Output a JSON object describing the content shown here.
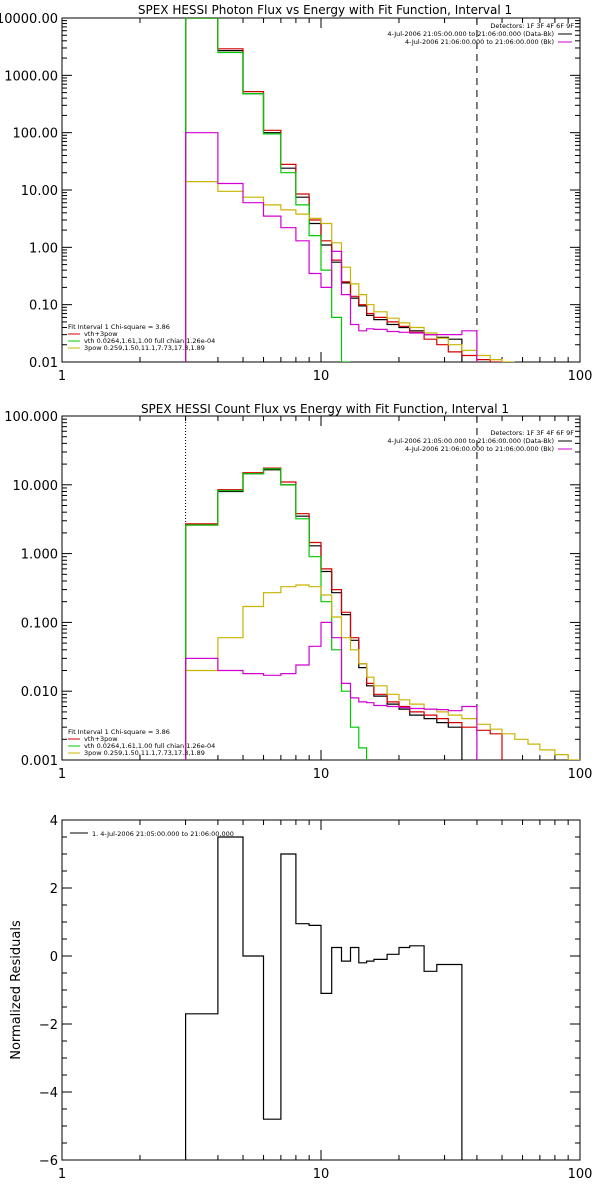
{
  "chart_data": [
    {
      "type": "line",
      "title": "SPEX HESSI Photon Flux vs Energy with Fit Function, Interval 1",
      "x_scale": "log",
      "y_scale": "log",
      "xlim": [
        1,
        100
      ],
      "ylim": [
        0.01,
        10000
      ],
      "x_ticks": [
        "1",
        "10",
        "100"
      ],
      "x_tick_values": [
        1,
        10,
        100
      ],
      "y_ticks": [
        "0.01",
        "0.10",
        "1.00",
        "10.00",
        "100.00",
        "1000.00",
        "10000.00"
      ],
      "y_tick_values": [
        0.01,
        0.1,
        1,
        10,
        100,
        1000,
        10000
      ],
      "energy_edges": [
        3,
        4,
        5,
        6,
        7,
        8,
        9,
        10,
        11,
        12,
        13,
        14,
        15,
        16,
        18,
        20,
        22,
        25,
        28,
        31,
        35,
        40,
        45,
        50,
        56,
        63,
        70,
        80,
        90,
        100
      ],
      "vlines": [
        {
          "x": 3,
          "style": "dotted"
        },
        {
          "x": 40,
          "style": "dashed"
        }
      ],
      "legend_top": [
        {
          "label": "Detectors: 1F 3F 4F 6F 9F",
          "color": ""
        },
        {
          "label": "4-Jul-2006 21:05:00.000 to 21:06:00.000 (Data-Bk)",
          "color": "#000000"
        },
        {
          "label": "4-Jul-2006 21:06:00.000 to 21:06:00.000 (Bk)",
          "color": "#d200d2"
        }
      ],
      "legend_bottom": [
        {
          "label": "Fit Interval 1    Chi-square = 3.86",
          "color": ""
        },
        {
          "label": "vth+3pow",
          "color": "#d20000"
        },
        {
          "label": "vth 0.0264,1.61,1.00   full chian 1.26e-04",
          "color": "#00c800"
        },
        {
          "label": "3pow 0.259,1.50,11.1,7.73,17.3,1.89",
          "color": "#c8b400"
        }
      ],
      "series": [
        {
          "name": "4-Jul-2006 21:05:00.000 to 21:06:00.000 (Data-Bk)",
          "color": "#000000",
          "values": [
            10000,
            2700,
            480,
            100,
            24,
            7.5,
            2.6,
            1.1,
            0.55,
            0.24,
            0.13,
            0.095,
            0.065,
            0.055,
            0.045,
            0.04,
            0.035,
            0.03,
            0.027,
            0.025
          ]
        },
        {
          "name": "vth+3pow",
          "color": "#d20000",
          "values": [
            10000,
            2900,
            520,
            110,
            28,
            8.5,
            3.0,
            1.3,
            0.6,
            0.25,
            0.14,
            0.1,
            0.07,
            0.06,
            0.05,
            0.042,
            0.033,
            0.025,
            0.02,
            0.015,
            0.013,
            0.011,
            0.009
          ]
        },
        {
          "name": "vth",
          "color": "#00c800",
          "values": [
            10000,
            2500,
            480,
            95,
            20,
            5.5,
            1.6,
            0.4,
            0.06,
            0.006
          ]
        },
        {
          "name": "3pow",
          "color": "#c8b400",
          "values": [
            14,
            9.5,
            7.5,
            5.5,
            4.5,
            3.8,
            3.2,
            2.6,
            1.2,
            0.45,
            0.23,
            0.15,
            0.1,
            0.075,
            0.058,
            0.048,
            0.04,
            0.032,
            0.026,
            0.02,
            0.016,
            0.013,
            0.011,
            0.009
          ]
        },
        {
          "name": "4-Jul-2006 21:06:00.000 to 21:06:00.000 (Bk)",
          "color": "#d200d2",
          "values": [
            100,
            13,
            6,
            3.5,
            2.2,
            1.3,
            0.35,
            0.2,
            0.85,
            0.15,
            0.045,
            0.035,
            0.038,
            0.037,
            0.034,
            0.033,
            0.032,
            0.03,
            0.03,
            0.03,
            0.035
          ]
        }
      ]
    },
    {
      "type": "line",
      "title": "SPEX HESSI Count Flux vs Energy with Fit Function, Interval 1",
      "x_scale": "log",
      "y_scale": "log",
      "xlim": [
        1,
        100
      ],
      "ylim": [
        0.001,
        100
      ],
      "x_ticks": [
        "1",
        "10",
        "100"
      ],
      "x_tick_values": [
        1,
        10,
        100
      ],
      "y_ticks": [
        "0.001",
        "0.010",
        "0.100",
        "1.000",
        "10.000",
        "100.000"
      ],
      "y_tick_values": [
        0.001,
        0.01,
        0.1,
        1,
        10,
        100
      ],
      "energy_edges": [
        3,
        4,
        5,
        6,
        7,
        8,
        9,
        10,
        11,
        12,
        13,
        14,
        15,
        16,
        18,
        20,
        22,
        25,
        28,
        31,
        35,
        40,
        45,
        50,
        56,
        63,
        70,
        80,
        90,
        100
      ],
      "vlines": [
        {
          "x": 3,
          "style": "dotted"
        },
        {
          "x": 40,
          "style": "dashed"
        }
      ],
      "legend_top": [
        {
          "label": "Detectors: 1F 3F 4F 6F 9F",
          "color": ""
        },
        {
          "label": "4-Jul-2006 21:05:00.000 to 21:06:00.000 (Data-Bk)",
          "color": "#000000"
        },
        {
          "label": "4-Jul-2006 21:06:00.000 to 21:06:00.000 (Bk)",
          "color": "#d200d2"
        }
      ],
      "legend_bottom": [
        {
          "label": "Fit Interval 1    Chi-square = 3.86",
          "color": ""
        },
        {
          "label": "vth+3pow",
          "color": "#d20000"
        },
        {
          "label": "vth 0.0264,1.61,1.00   full chian 1.26e-04",
          "color": "#00c800"
        },
        {
          "label": "3pow 0.259,1.50,11.1,7.73,17.3,1.89",
          "color": "#c8b400"
        }
      ],
      "series": [
        {
          "name": "4-Jul-2006 21:05:00.000 to 21:06:00.000 (Data-Bk)",
          "color": "#000000",
          "values": [
            2.6,
            8,
            14.5,
            16.5,
            10,
            3.5,
            1.3,
            0.55,
            0.27,
            0.13,
            0.055,
            0.022,
            0.012,
            0.0085,
            0.0065,
            0.0055,
            0.0045,
            0.004,
            0.0035,
            0.003
          ]
        },
        {
          "name": "vth+3pow",
          "color": "#d20000",
          "values": [
            2.7,
            8.5,
            15,
            17.5,
            11,
            3.8,
            1.45,
            0.6,
            0.3,
            0.14,
            0.06,
            0.025,
            0.013,
            0.009,
            0.007,
            0.006,
            0.005,
            0.0045,
            0.004,
            0.0035,
            0.003,
            0.0027,
            0.0024
          ]
        },
        {
          "name": "vth",
          "color": "#00c800",
          "values": [
            2.6,
            8.2,
            14.5,
            17,
            10,
            3.2,
            0.9,
            0.2,
            0.04,
            0.01,
            0.003,
            0.0015
          ]
        },
        {
          "name": "3pow",
          "color": "#c8b400",
          "values": [
            0.02,
            0.06,
            0.17,
            0.27,
            0.33,
            0.35,
            0.33,
            0.25,
            0.12,
            0.06,
            0.04,
            0.025,
            0.016,
            0.012,
            0.009,
            0.0075,
            0.0065,
            0.0055,
            0.005,
            0.0045,
            0.004,
            0.0033,
            0.0028,
            0.0024,
            0.002,
            0.0017,
            0.0014,
            0.0012,
            0.001
          ]
        },
        {
          "name": "4-Jul-2006 21:06:00.000 to 21:06:00.000 (Bk)",
          "color": "#d200d2",
          "values": [
            0.03,
            0.02,
            0.018,
            0.017,
            0.018,
            0.024,
            0.045,
            0.1,
            0.06,
            0.013,
            0.008,
            0.007,
            0.0068,
            0.0062,
            0.006,
            0.0058,
            0.0056,
            0.0055,
            0.0054,
            0.0052,
            0.006
          ]
        }
      ]
    },
    {
      "type": "line",
      "title": "",
      "ylabel": "Normalized Residuals",
      "x_scale": "log",
      "y_scale": "linear",
      "xlim": [
        1,
        100
      ],
      "ylim": [
        -6,
        4
      ],
      "x_ticks": [
        "1",
        "10",
        "100"
      ],
      "x_tick_values": [
        1,
        10,
        100
      ],
      "y_ticks": [
        "−6",
        "−4",
        "−2",
        "0",
        "2",
        "4"
      ],
      "y_tick_values": [
        -6,
        -4,
        -2,
        0,
        2,
        4
      ],
      "energy_edges": [
        3,
        4,
        5,
        6,
        7,
        8,
        9,
        10,
        11,
        12,
        13,
        14,
        15,
        16,
        18,
        20,
        22,
        25,
        28,
        31,
        35,
        40
      ],
      "legend_top": [
        {
          "label": "1.  4-Jul-2006 21:05:00.000 to 21:06:00.000",
          "color": "#000000"
        }
      ],
      "series": [
        {
          "name": "1.  4-Jul-2006 21:05:00.000 to 21:06:00.000",
          "color": "#000000",
          "values": [
            -1.7,
            3.5,
            0,
            -4.8,
            3.0,
            0.95,
            0.9,
            -1.1,
            0.25,
            -0.15,
            0.25,
            -0.2,
            -0.15,
            -0.1,
            0.05,
            0.25,
            0.3,
            -0.45,
            -0.25,
            -0.25
          ]
        }
      ]
    }
  ]
}
